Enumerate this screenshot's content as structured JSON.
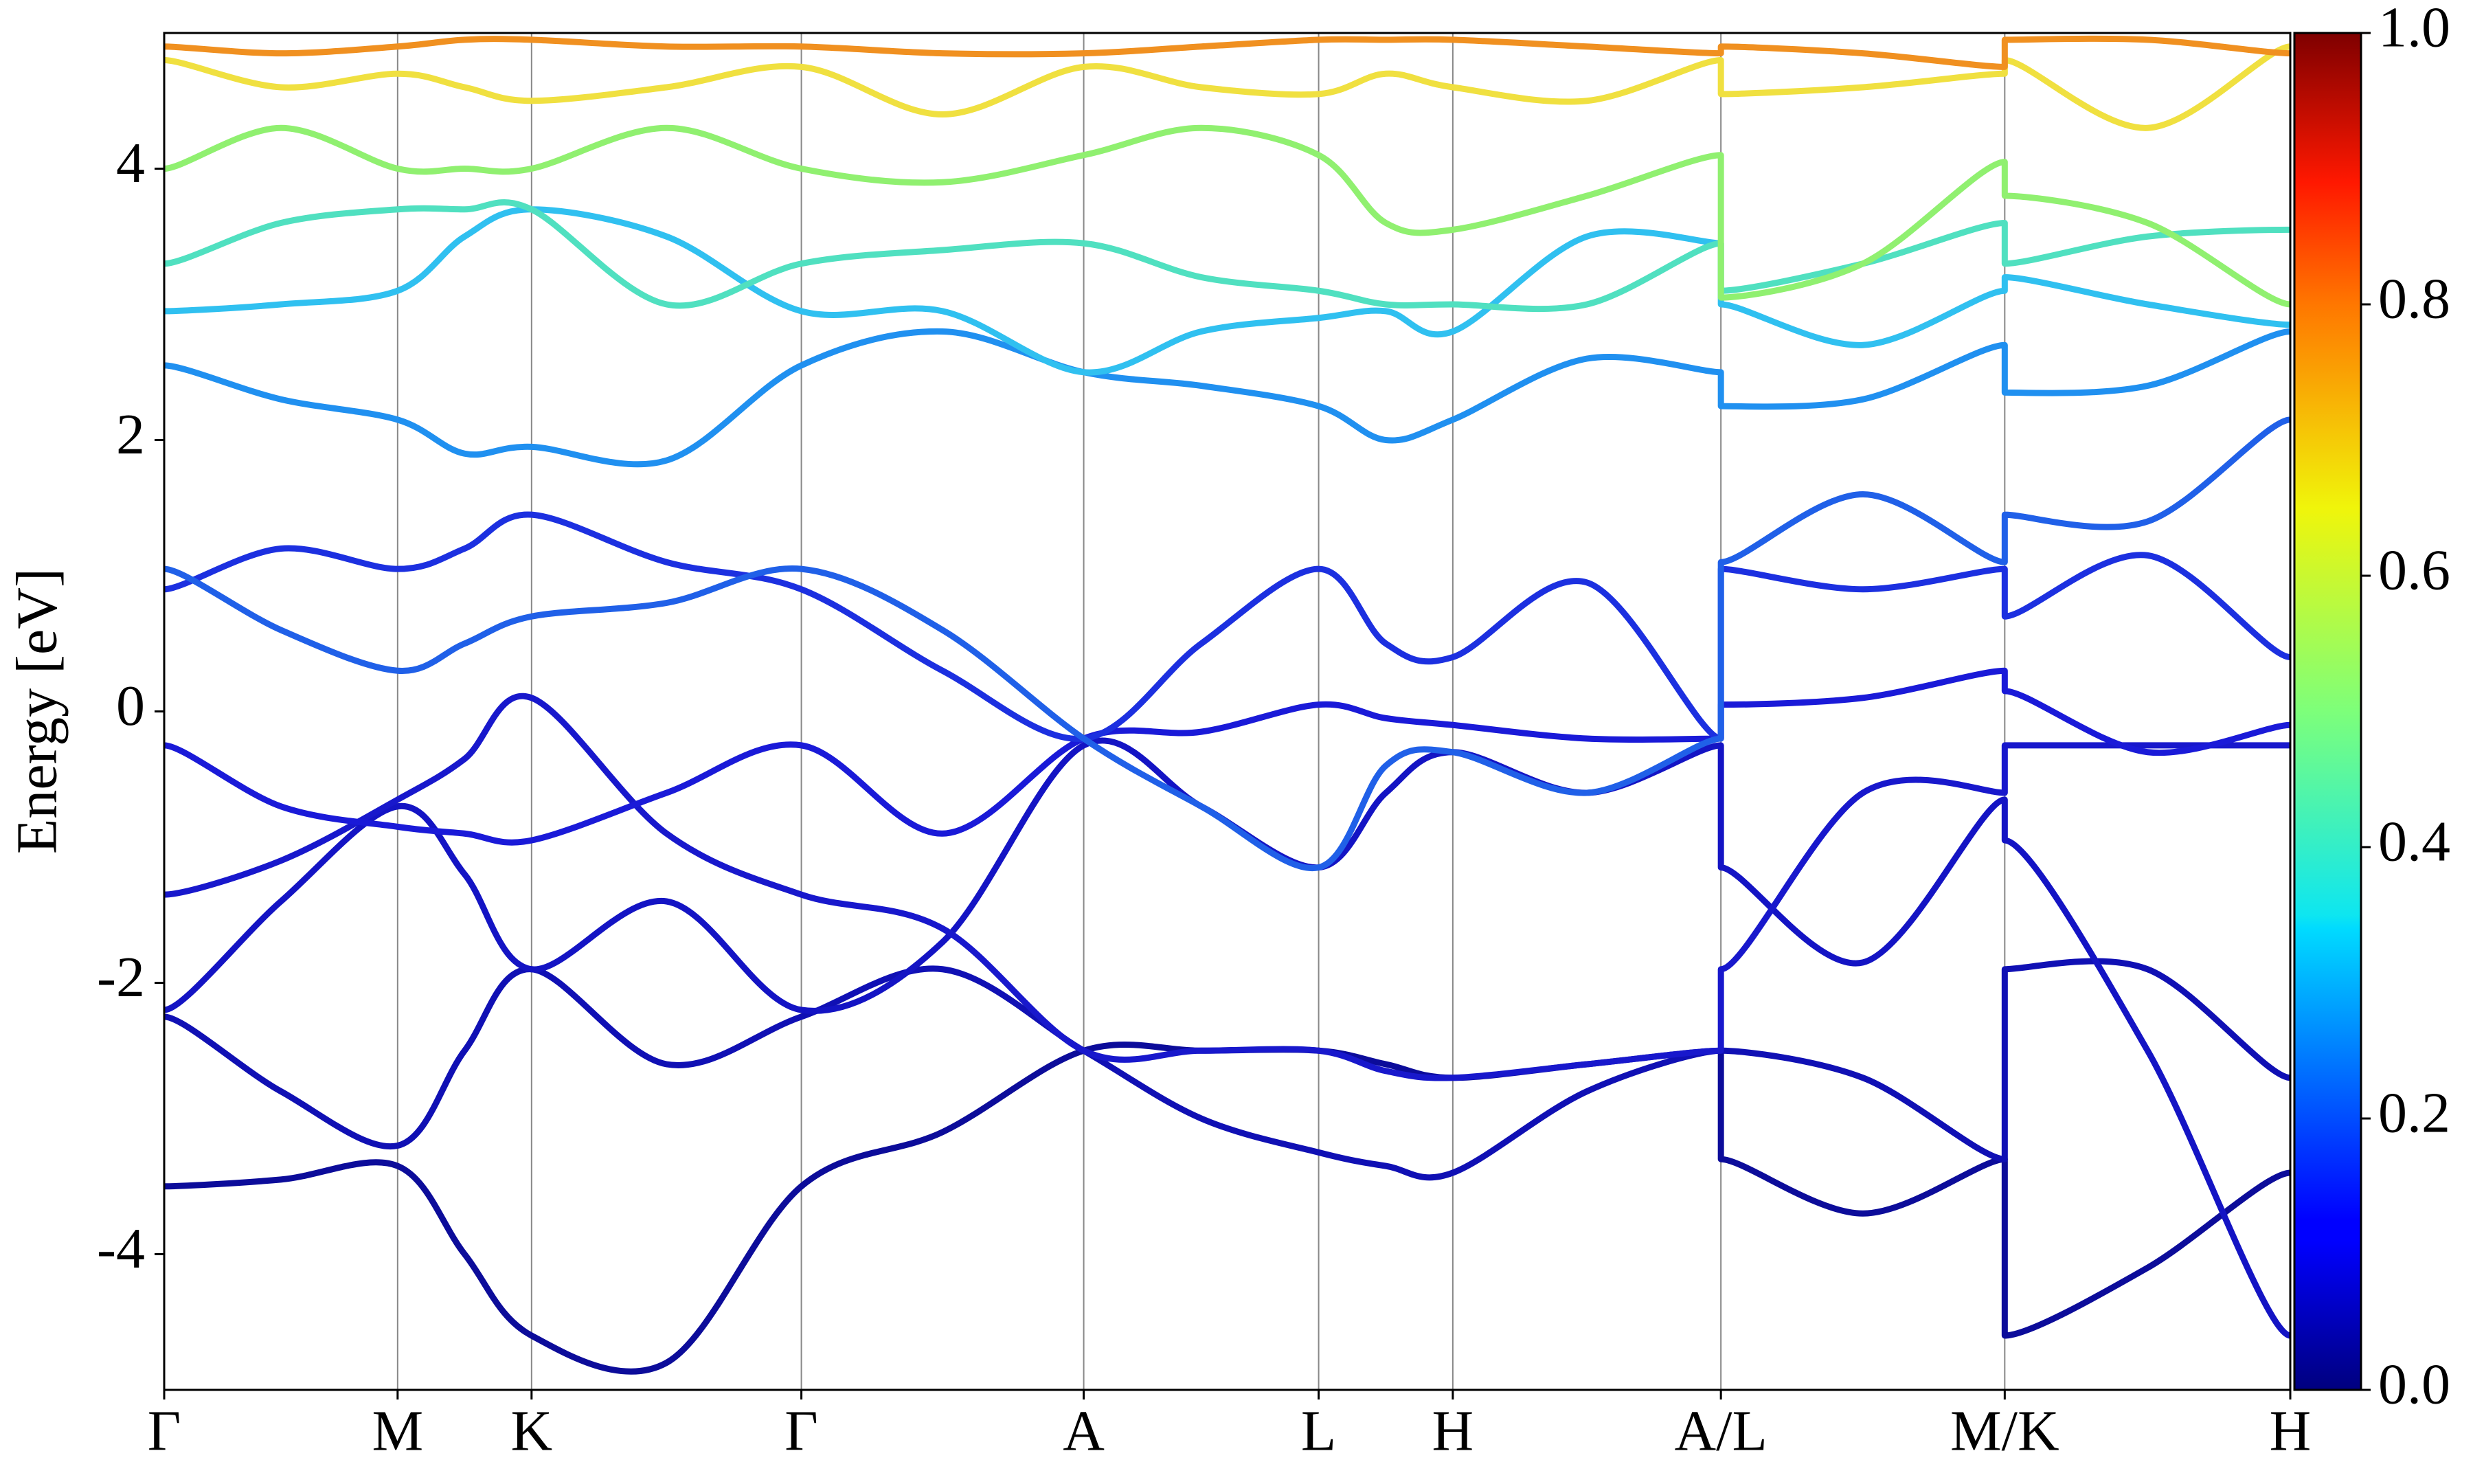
{
  "chart_data": {
    "type": "line",
    "y_label": "Energy [eV]",
    "x": [
      0,
      0.0549,
      0.1098,
      0.1413,
      0.1728,
      0.2363,
      0.2997,
      0.3661,
      0.4325,
      0.4878,
      0.543,
      0.5746,
      0.6061,
      0.6692,
      0.7322,
      0.7322,
      0.799,
      0.8657,
      0.8657,
      0.9329,
      1.0
    ],
    "xlim": [
      0,
      1.0
    ],
    "xticks": [
      {
        "value": 0,
        "label": "Γ"
      },
      {
        "value": 0.1098,
        "label": "M"
      },
      {
        "value": 0.1728,
        "label": "K"
      },
      {
        "value": 0.2997,
        "label": "Γ"
      },
      {
        "value": 0.4325,
        "label": "A"
      },
      {
        "value": 0.543,
        "label": "L"
      },
      {
        "value": 0.6061,
        "label": "H"
      },
      {
        "value": 0.7322,
        "label": "A/L"
      },
      {
        "value": 0.8657,
        "label": "M/K"
      },
      {
        "value": 1.0,
        "label": "H"
      }
    ],
    "ylim": [
      -5,
      5
    ],
    "yticks": [
      -4,
      -2,
      0,
      2,
      4
    ],
    "clim": [
      0,
      1.0
    ],
    "cticks": [
      {
        "value": 0,
        "label": "0.0"
      },
      {
        "value": 0.2,
        "label": "0.2"
      },
      {
        "value": 0.4,
        "label": "0.4"
      },
      {
        "value": 0.6,
        "label": "0.6"
      },
      {
        "value": 0.8,
        "label": "0.8"
      },
      {
        "value": 1.0,
        "label": "1.0"
      }
    ],
    "series": [
      {
        "color": "#0c0c9a",
        "values": [
          -3.5,
          -3.45,
          -3.35,
          -4.0,
          -4.6,
          -4.8,
          -3.5,
          -3.1,
          -2.5,
          -2.5,
          -2.5,
          -2.6,
          -2.7,
          -2.6,
          -2.5,
          -3.3,
          -3.7,
          -3.3,
          -4.6,
          -4.1,
          -3.4
        ]
      },
      {
        "color": "#1010b4",
        "values": [
          -2.25,
          -2.8,
          -3.2,
          -2.5,
          -1.9,
          -2.6,
          -2.25,
          -1.9,
          -2.5,
          -3.0,
          -3.25,
          -3.35,
          -3.4,
          -2.8,
          -2.5,
          -2.5,
          -2.7,
          -3.3,
          -1.9,
          -1.9,
          -2.7
        ]
      },
      {
        "color": "#1414c4",
        "values": [
          -2.2,
          -1.4,
          -0.7,
          -1.2,
          -1.9,
          -1.4,
          -2.2,
          -1.7,
          -0.25,
          -0.7,
          -1.15,
          -0.6,
          -0.3,
          -0.6,
          -0.25,
          -1.15,
          -1.85,
          -0.65,
          -0.95,
          -2.5,
          -4.6
        ]
      },
      {
        "color": "#1818cc",
        "values": [
          -1.35,
          -1.1,
          -0.65,
          -0.35,
          0.1,
          -0.9,
          -1.35,
          -1.6,
          -2.5,
          -2.5,
          -2.5,
          -2.65,
          -2.7,
          -2.6,
          -2.5,
          -1.9,
          -0.6,
          -0.6,
          -0.25,
          -0.25,
          -0.25
        ]
      },
      {
        "color": "#1a1ad8",
        "values": [
          -0.25,
          -0.7,
          -0.85,
          -0.9,
          -0.95,
          -0.6,
          -0.25,
          -0.9,
          -0.2,
          -0.15,
          0.05,
          -0.05,
          -0.1,
          -0.2,
          -0.2,
          0.05,
          0.1,
          0.3,
          0.15,
          -0.3,
          -0.1
        ]
      },
      {
        "color": "#1c30e0",
        "values": [
          0.9,
          1.2,
          1.05,
          1.2,
          1.45,
          1.1,
          0.9,
          0.3,
          -0.2,
          0.5,
          1.05,
          0.5,
          0.4,
          0.95,
          -0.2,
          1.05,
          0.9,
          1.05,
          0.7,
          1.15,
          0.4
        ]
      },
      {
        "color": "#2060e8",
        "values": [
          1.05,
          0.6,
          0.3,
          0.5,
          0.7,
          0.8,
          1.05,
          0.6,
          -0.2,
          -0.7,
          -1.15,
          -0.4,
          -0.3,
          -0.6,
          -0.2,
          1.1,
          1.6,
          1.1,
          1.45,
          1.4,
          2.15
        ]
      },
      {
        "color": "#2090f0",
        "values": [
          2.55,
          2.3,
          2.15,
          1.9,
          1.95,
          1.85,
          2.55,
          2.8,
          2.5,
          2.4,
          2.25,
          2.0,
          2.15,
          2.6,
          2.5,
          2.25,
          2.3,
          2.7,
          2.35,
          2.4,
          2.8
        ]
      },
      {
        "color": "#30c0f0",
        "values": [
          2.95,
          3.0,
          3.1,
          3.5,
          3.7,
          3.5,
          2.95,
          2.95,
          2.5,
          2.8,
          2.9,
          2.95,
          2.8,
          3.5,
          3.45,
          3.0,
          2.7,
          3.1,
          3.2,
          3.0,
          2.85
        ]
      },
      {
        "color": "#50e0c0",
        "values": [
          3.3,
          3.6,
          3.7,
          3.7,
          3.7,
          3.0,
          3.3,
          3.4,
          3.45,
          3.2,
          3.1,
          3.0,
          3.0,
          3.0,
          3.45,
          3.1,
          3.3,
          3.6,
          3.3,
          3.5,
          3.55
        ]
      },
      {
        "color": "#90f070",
        "values": [
          4.0,
          4.3,
          4.0,
          4.0,
          4.0,
          4.3,
          4.0,
          3.9,
          4.1,
          4.3,
          4.1,
          3.6,
          3.55,
          3.8,
          4.1,
          3.05,
          3.3,
          4.05,
          3.8,
          3.6,
          3.0
        ]
      },
      {
        "color": "#f0e040",
        "values": [
          4.8,
          4.6,
          4.7,
          4.6,
          4.5,
          4.6,
          4.75,
          4.4,
          4.75,
          4.6,
          4.55,
          4.7,
          4.6,
          4.5,
          4.8,
          4.55,
          4.6,
          4.7,
          4.8,
          4.3,
          4.9
        ]
      },
      {
        "color": "#f09020",
        "values": [
          4.9,
          4.85,
          4.9,
          4.95,
          4.95,
          4.9,
          4.9,
          4.85,
          4.85,
          4.9,
          4.95,
          4.95,
          4.95,
          4.9,
          4.85,
          4.9,
          4.85,
          4.75,
          4.95,
          4.95,
          4.85
        ]
      }
    ]
  }
}
